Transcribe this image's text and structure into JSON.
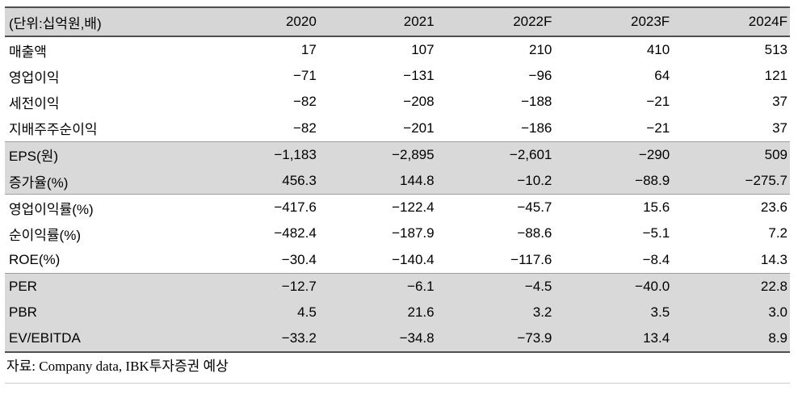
{
  "colors": {
    "header_bg": "#d6d6d6",
    "shaded_row_bg": "#d9d9d9",
    "strong_rule": "#4f4f4f",
    "section_rule": "#9e9e9e",
    "footer_rule": "#cfcfcf"
  },
  "table": {
    "unit_label": "(단위:십억원,배)",
    "columns": [
      "2020",
      "2021",
      "2022F",
      "2023F",
      "2024F"
    ],
    "rows": [
      {
        "label": "매출액",
        "values": [
          "17",
          "107",
          "210",
          "410",
          "513"
        ],
        "shaded": false
      },
      {
        "label": "영업이익",
        "values": [
          "−71",
          "−131",
          "−96",
          "64",
          "121"
        ],
        "shaded": false
      },
      {
        "label": "세전이익",
        "values": [
          "−82",
          "−208",
          "−188",
          "−21",
          "37"
        ],
        "shaded": false
      },
      {
        "label": "지배주주순이익",
        "values": [
          "−82",
          "−201",
          "−186",
          "−21",
          "37"
        ],
        "shaded": false
      },
      {
        "label": "EPS(원)",
        "values": [
          "−1,183",
          "−2,895",
          "−2,601",
          "−290",
          "509"
        ],
        "shaded": true
      },
      {
        "label": "증가율(%)",
        "values": [
          "456.3",
          "144.8",
          "−10.2",
          "−88.9",
          "−275.7"
        ],
        "shaded": true
      },
      {
        "label": "영업이익률(%)",
        "values": [
          "−417.6",
          "−122.4",
          "−45.7",
          "15.6",
          "23.6"
        ],
        "shaded": false
      },
      {
        "label": "순이익률(%)",
        "values": [
          "−482.4",
          "−187.9",
          "−88.6",
          "−5.1",
          "7.2"
        ],
        "shaded": false
      },
      {
        "label": "ROE(%)",
        "values": [
          "−30.4",
          "−140.4",
          "−117.6",
          "−8.4",
          "14.3"
        ],
        "shaded": false
      },
      {
        "label": "PER",
        "values": [
          "−12.7",
          "−6.1",
          "−4.5",
          "−40.0",
          "22.8"
        ],
        "shaded": true
      },
      {
        "label": "PBR",
        "values": [
          "4.5",
          "21.6",
          "3.2",
          "3.5",
          "3.0"
        ],
        "shaded": true
      },
      {
        "label": "EV/EBITDA",
        "values": [
          "−33.2",
          "−34.8",
          "−73.9",
          "13.4",
          "8.9"
        ],
        "shaded": true
      }
    ]
  },
  "footer": {
    "source": "자료: Company data, IBK투자증권 예상"
  }
}
